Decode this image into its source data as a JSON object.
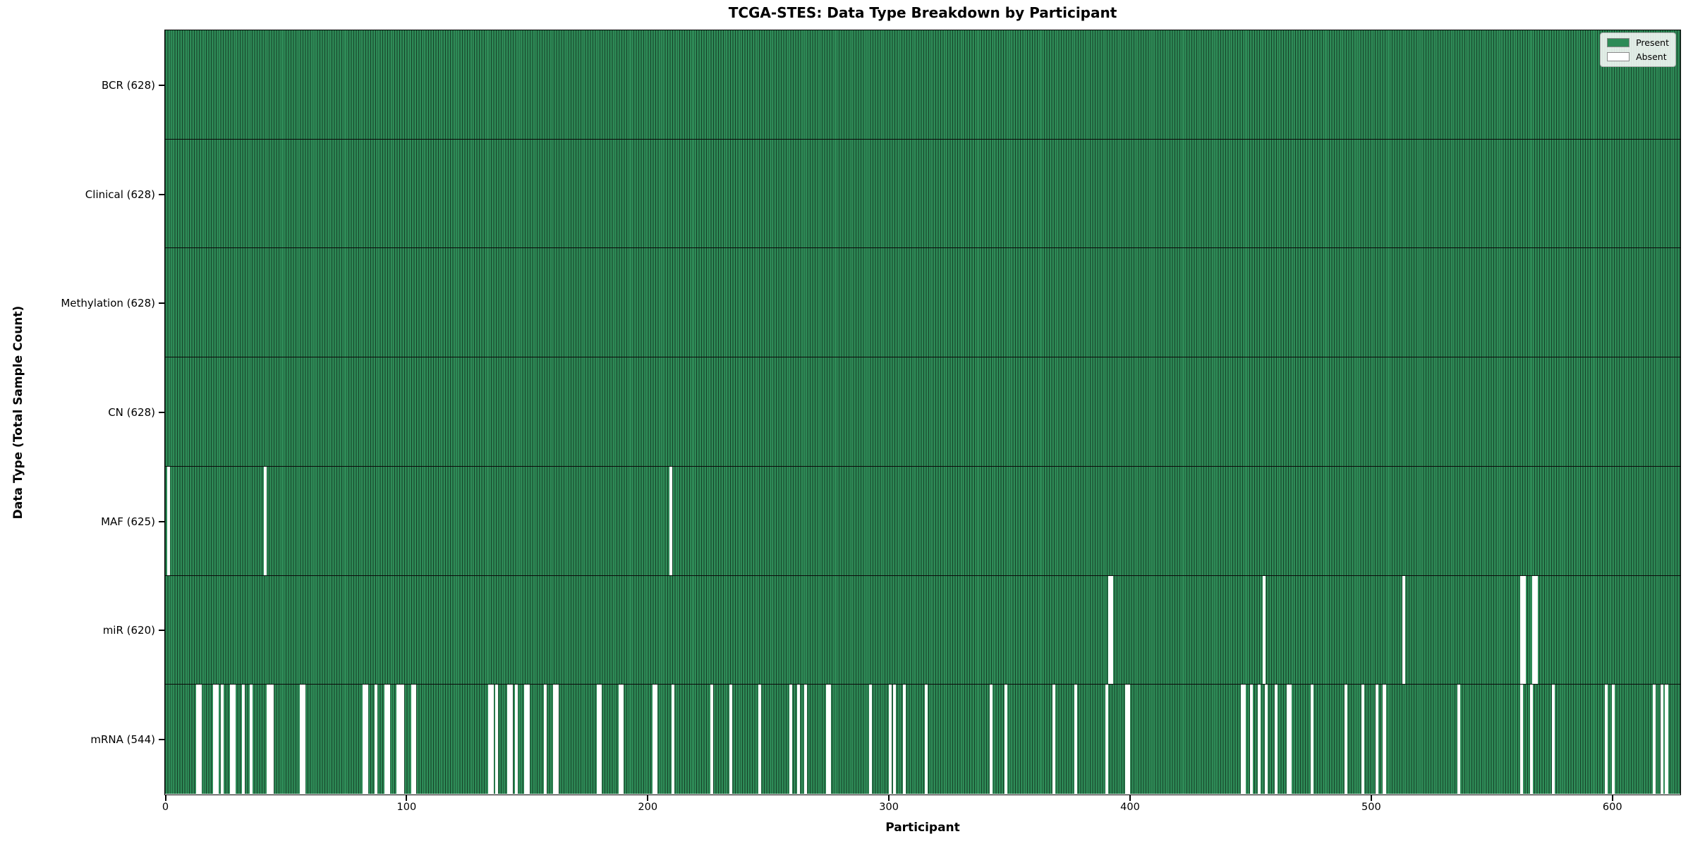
{
  "title": "TCGA-STES: Data Type Breakdown by Participant",
  "chart_data": {
    "type": "heatmap",
    "title": "TCGA-STES: Data Type Breakdown by Participant",
    "xlabel": "Participant",
    "ylabel": "Data Type (Total Sample Count)",
    "x_ticks": [
      0,
      100,
      200,
      300,
      400,
      500,
      600
    ],
    "x_range": [
      0,
      628
    ],
    "n_participants": 628,
    "grid": false,
    "legend_position": "upper right",
    "colors": {
      "present": "#2e8b57",
      "present_edge": "#1b5e3a",
      "absent": "#ffffff",
      "row_separator": "#0a0a0a",
      "spine": "#000000"
    },
    "legend": {
      "entries": [
        {
          "label": "Present",
          "color": "#2e8b57"
        },
        {
          "label": "Absent",
          "color": "#ffffff"
        }
      ]
    },
    "rows": [
      {
        "label": "BCR (628)",
        "data_type": "BCR",
        "present_count": 628,
        "absent_count": 0,
        "absent_participants": []
      },
      {
        "label": "Clinical (628)",
        "data_type": "Clinical",
        "present_count": 628,
        "absent_count": 0,
        "absent_participants": []
      },
      {
        "label": "Methylation (628)",
        "data_type": "Methylation",
        "present_count": 628,
        "absent_count": 0,
        "absent_participants": []
      },
      {
        "label": "CN (628)",
        "data_type": "CN",
        "present_count": 628,
        "absent_count": 0,
        "absent_participants": []
      },
      {
        "label": "MAF (625)",
        "data_type": "MAF",
        "present_count": 625,
        "absent_count": 3,
        "absent_participants": [
          1,
          41,
          209
        ]
      },
      {
        "label": "miR (620)",
        "data_type": "miR",
        "present_count": 620,
        "absent_count": 8,
        "absent_participants": [
          391,
          392,
          455,
          513,
          562,
          563,
          567,
          568
        ]
      },
      {
        "label": "mRNA (544)",
        "data_type": "mRNA",
        "present_count": 544,
        "absent_count": 84,
        "absent_participants": [
          13,
          14,
          20,
          21,
          23,
          27,
          28,
          32,
          35,
          42,
          43,
          44,
          56,
          57,
          82,
          83,
          87,
          91,
          92,
          96,
          97,
          98,
          102,
          103,
          134,
          135,
          137,
          142,
          143,
          145,
          149,
          150,
          157,
          161,
          162,
          179,
          180,
          188,
          189,
          202,
          203,
          210,
          226,
          234,
          246,
          259,
          262,
          265,
          274,
          275,
          292,
          300,
          302,
          306,
          315,
          342,
          348,
          368,
          377,
          390,
          398,
          399,
          446,
          447,
          450,
          453,
          456,
          460,
          465,
          466,
          475,
          489,
          496,
          502,
          505,
          536,
          562,
          566,
          575,
          597,
          600,
          617,
          620,
          622
        ]
      }
    ]
  }
}
